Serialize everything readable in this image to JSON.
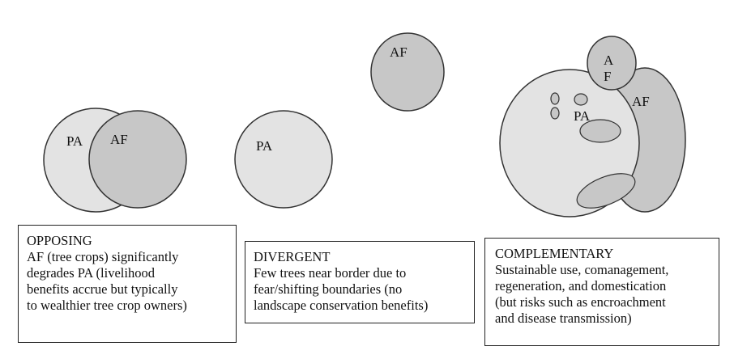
{
  "colors": {
    "pa_fill": "#e3e3e3",
    "af_fill": "#c7c7c7",
    "stroke": "#333333",
    "box_border": "#222222"
  },
  "opposing": {
    "pa_label": "PA",
    "af_label": "AF",
    "title": "OPPOSING",
    "lines": [
      "AF (tree crops) significantly",
      "degrades PA (livelihood",
      "benefits accrue but typically",
      "to wealthier tree crop owners)"
    ]
  },
  "divergent": {
    "af_label": "AF",
    "pa_label": "PA",
    "title": "DIVERGENT",
    "lines": [
      "Few trees near border due to",
      "fear/shifting boundaries (no",
      "landscape conservation benefits)"
    ]
  },
  "complementary": {
    "pa_label": "PA",
    "af_small_label_a": "A",
    "af_small_label_f": "F",
    "af_right_label": "AF",
    "title": "COMPLEMENTARY",
    "lines": [
      "Sustainable use, comanagement,",
      "regeneration, and domestication",
      "(but risks such as encroachment",
      "and disease transmission)"
    ]
  }
}
